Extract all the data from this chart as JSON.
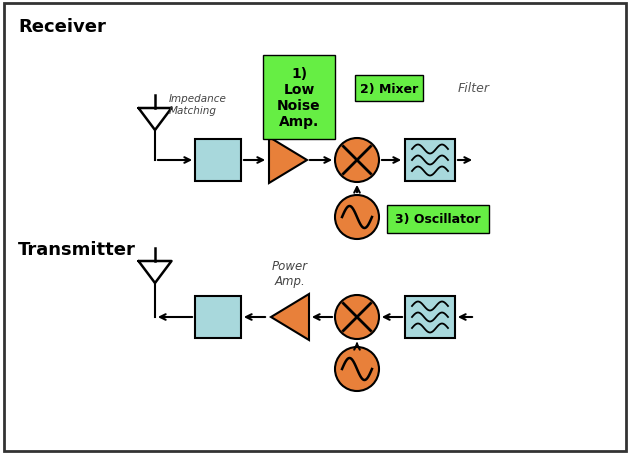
{
  "bg_color": "#ffffff",
  "border_color": "#333333",
  "orange_color": "#E8803A",
  "light_blue_color": "#A8D8DC",
  "green_color": "#66EE44",
  "line_color": "#000000",
  "receiver_label": "Receiver",
  "transmitter_label": "Transmitter",
  "lna_label": "1)\nLow\nNoise\nAmp.",
  "mixer_label": "2) Mixer",
  "osc_label": "3) Oscillator",
  "imp_label": "Impedance\nMatching",
  "filter_label": "Filter",
  "power_amp_label": "Power\nAmp.",
  "figsize": [
    6.3,
    4.56
  ],
  "dpi": 100
}
